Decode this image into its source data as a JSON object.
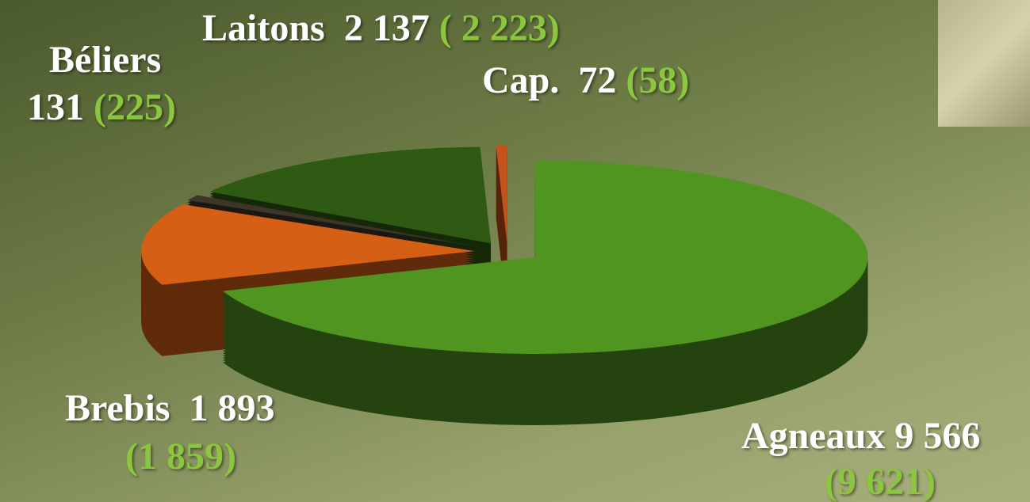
{
  "chart_data": {
    "type": "pie",
    "categories": [
      "Agneaux",
      "Brebis",
      "Béliers",
      "Laitons",
      "Cap."
    ],
    "values": [
      9566,
      1893,
      131,
      2137,
      72
    ],
    "value_labels": [
      "9 566",
      "1 893",
      "131",
      "2 137",
      "72"
    ],
    "previous_labels": [
      "(9 621)",
      "(1 859)",
      "(225)",
      "( 2 223)",
      "(58)"
    ],
    "colors": [
      "#4f9520",
      "#d65f16",
      "#3d3527",
      "#2e5a13",
      "#c4521b"
    ]
  }
}
